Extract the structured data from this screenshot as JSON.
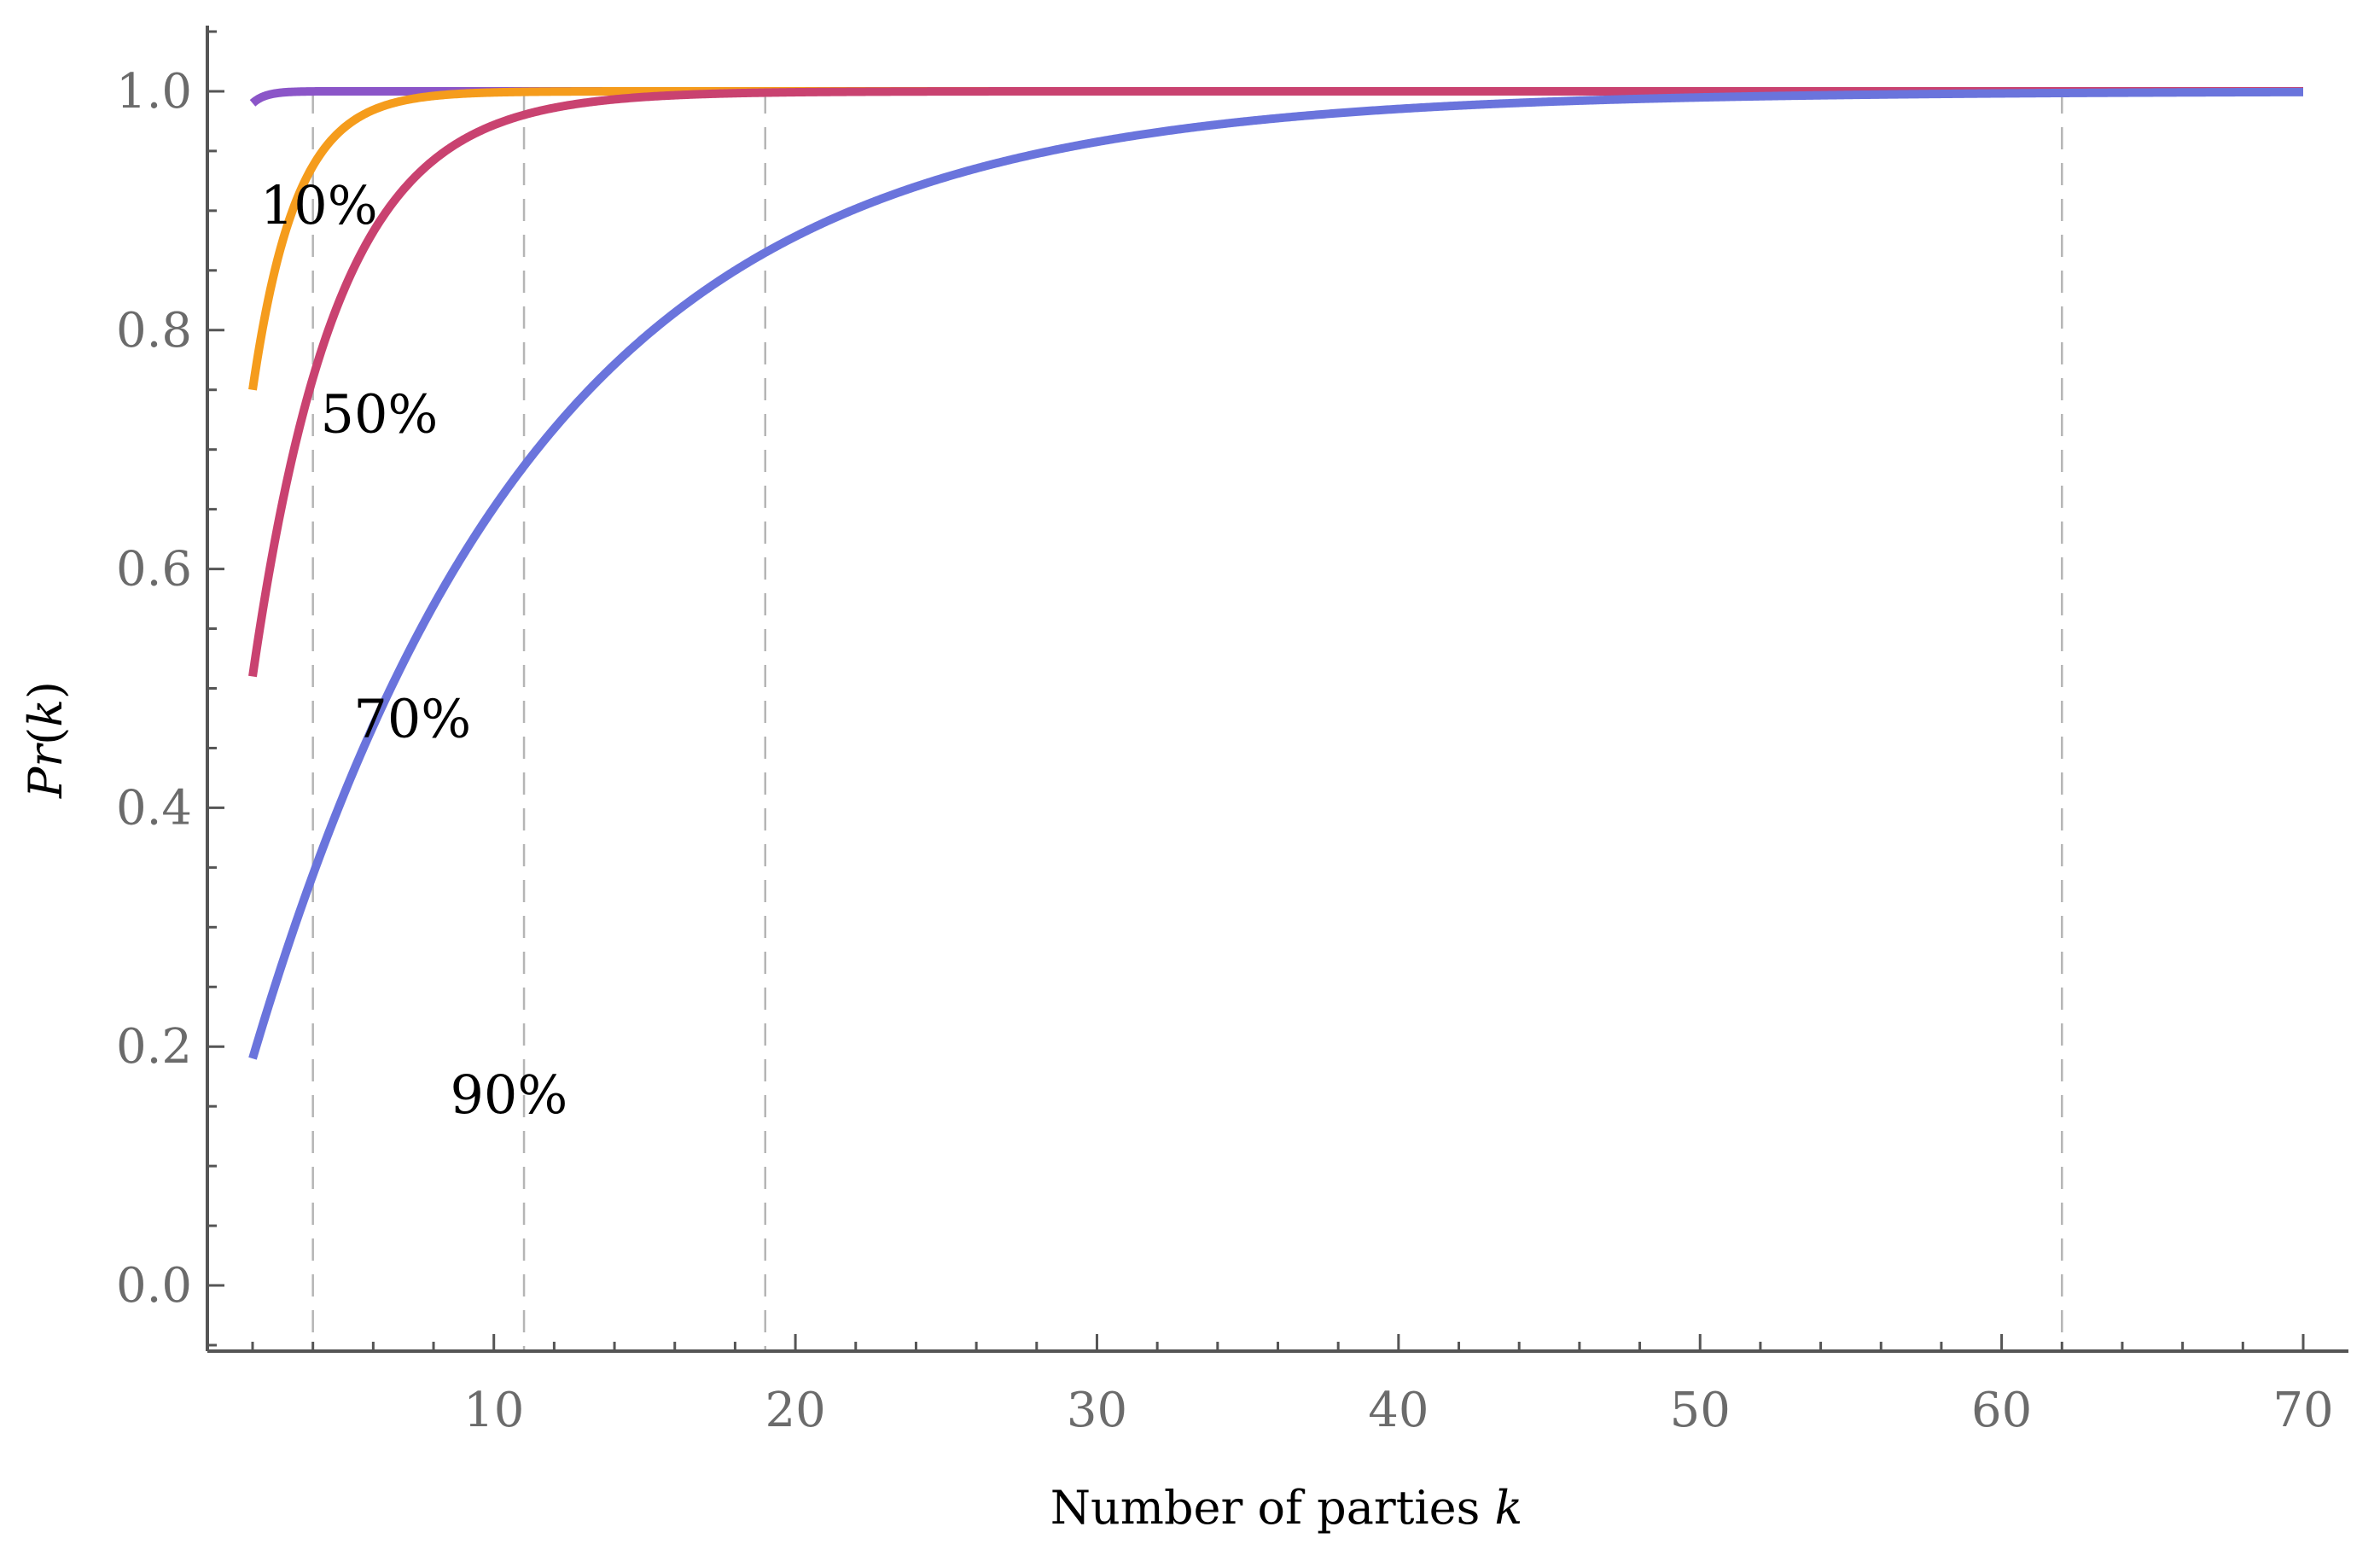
{
  "chart_data": {
    "type": "line",
    "title": "",
    "xlabel": "Number of parties k",
    "xlabel_parts": {
      "text": "Number of parties ",
      "var": "k"
    },
    "ylabel": "Pr(k)",
    "ylabel_parts": {
      "pre": "Pr",
      "open": "(",
      "var": "k",
      "close": ")"
    },
    "xlim": [
      0.5,
      71.5
    ],
    "ylim": [
      -0.055,
      1.055
    ],
    "xticks": [
      10,
      20,
      30,
      40,
      50,
      60,
      70
    ],
    "xtick_labels": [
      "10",
      "20",
      "30",
      "40",
      "50",
      "60",
      "70"
    ],
    "yticks": [
      0.0,
      0.2,
      0.4,
      0.6,
      0.8,
      1.0
    ],
    "ytick_labels": [
      "0.0",
      "0.2",
      "0.4",
      "0.6",
      "0.8",
      "1.0"
    ],
    "reference_lines_x": [
      4,
      11,
      19,
      62
    ],
    "series": [
      {
        "name": "10%",
        "label": "10%",
        "color": "#8b55c8",
        "p": 0.1,
        "k_start": 2,
        "k_end": 70,
        "label_x": 4.2,
        "label_y": 0.905
      },
      {
        "name": "50%",
        "label": "50%",
        "color": "#f59c1c",
        "p": 0.5,
        "k_start": 2,
        "k_end": 70,
        "label_x": 6.2,
        "label_y": 0.73
      },
      {
        "name": "70%",
        "label": "70%",
        "color": "#c94270",
        "p": 0.7,
        "k_start": 2,
        "k_end": 70,
        "label_x": 7.3,
        "label_y": 0.475
      },
      {
        "name": "90%",
        "label": "90%",
        "color": "#6a74dc",
        "p": 0.9,
        "k_start": 2,
        "k_end": 70,
        "label_x": 10.5,
        "label_y": 0.16
      }
    ]
  }
}
